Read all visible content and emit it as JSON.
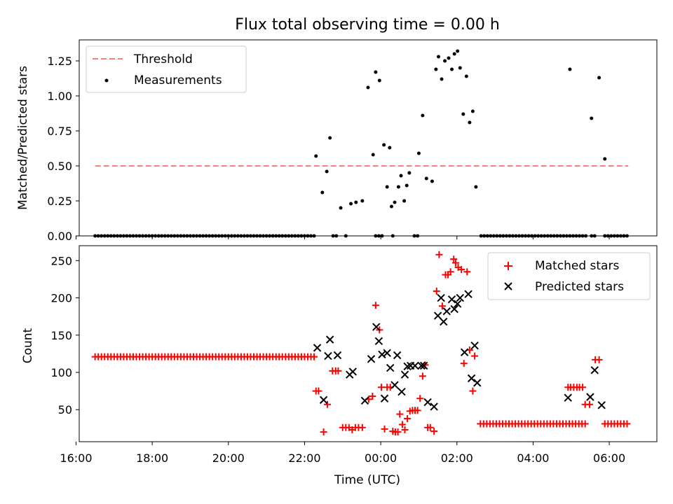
{
  "figure": {
    "title": "Flux total observing time = 0.00 h"
  },
  "chart_data": [
    {
      "type": "scatter",
      "ylabel": "Matched/Predicted stars",
      "xlabel": "",
      "xlim": [
        "16:05",
        "07:15"
      ],
      "ylim": [
        0,
        1.4
      ],
      "yticks": [
        0.0,
        0.25,
        0.5,
        0.75,
        1.0,
        1.25
      ],
      "ytick_labels": [
        "0.00",
        "0.25",
        "0.50",
        "0.75",
        "1.00",
        "1.25"
      ],
      "grid": false,
      "legend_position": "top-left",
      "threshold": {
        "name": "Threshold",
        "value": 0.5,
        "x_range": [
          "16:30",
          "06:30"
        ],
        "color": "#ff7f7f",
        "style": "dashed"
      },
      "series": [
        {
          "name": "Measurements",
          "color": "#000000",
          "marker": "dot",
          "points": [
            {
              "x": "22:18",
              "y": 0.57
            },
            {
              "x": "22:28",
              "y": 0.31
            },
            {
              "x": "22:35",
              "y": 0.46
            },
            {
              "x": "22:40",
              "y": 0.7
            },
            {
              "x": "22:57",
              "y": 0.2
            },
            {
              "x": "23:13",
              "y": 0.23
            },
            {
              "x": "23:21",
              "y": 0.24
            },
            {
              "x": "23:31",
              "y": 0.25
            },
            {
              "x": "23:40",
              "y": 1.06
            },
            {
              "x": "23:48",
              "y": 0.58
            },
            {
              "x": "23:52",
              "y": 1.17
            },
            {
              "x": "23:58",
              "y": 1.11
            },
            {
              "x": "00:05",
              "y": 0.65
            },
            {
              "x": "00:10",
              "y": 0.35
            },
            {
              "x": "00:14",
              "y": 0.63
            },
            {
              "x": "00:17",
              "y": 0.21
            },
            {
              "x": "00:22",
              "y": 0.24
            },
            {
              "x": "00:28",
              "y": 0.35
            },
            {
              "x": "00:32",
              "y": 0.43
            },
            {
              "x": "00:37",
              "y": 0.25
            },
            {
              "x": "00:41",
              "y": 0.36
            },
            {
              "x": "00:45",
              "y": 0.45
            },
            {
              "x": "01:00",
              "y": 0.59
            },
            {
              "x": "01:06",
              "y": 0.86
            },
            {
              "x": "01:12",
              "y": 0.41
            },
            {
              "x": "01:21",
              "y": 0.39
            },
            {
              "x": "01:27",
              "y": 1.19
            },
            {
              "x": "01:31",
              "y": 1.28
            },
            {
              "x": "01:36",
              "y": 1.12
            },
            {
              "x": "01:41",
              "y": 1.25
            },
            {
              "x": "01:47",
              "y": 1.27
            },
            {
              "x": "01:52",
              "y": 1.19
            },
            {
              "x": "01:56",
              "y": 1.3
            },
            {
              "x": "02:01",
              "y": 1.32
            },
            {
              "x": "02:05",
              "y": 1.2
            },
            {
              "x": "02:10",
              "y": 0.87
            },
            {
              "x": "02:15",
              "y": 1.14
            },
            {
              "x": "02:20",
              "y": 0.81
            },
            {
              "x": "02:25",
              "y": 0.89
            },
            {
              "x": "02:30",
              "y": 0.35
            },
            {
              "x": "04:58",
              "y": 1.19
            },
            {
              "x": "05:32",
              "y": 0.84
            },
            {
              "x": "05:44",
              "y": 1.13
            },
            {
              "x": "05:53",
              "y": 0.55
            }
          ],
          "zero_ranges": [
            [
              "16:30",
              "22:15"
            ],
            [
              "22:45",
              "22:52"
            ],
            [
              "23:05",
              "23:08"
            ],
            [
              "23:52",
              "00:02"
            ],
            [
              "00:19",
              "00:21"
            ],
            [
              "00:53",
              "01:00"
            ],
            [
              "02:38",
              "05:25"
            ],
            [
              "05:32",
              "05:40"
            ],
            [
              "05:53",
              "06:30"
            ]
          ]
        }
      ]
    },
    {
      "type": "scatter",
      "xlabel": "Time (UTC)",
      "ylabel": "Count",
      "xlim": [
        "16:05",
        "07:15"
      ],
      "ylim": [
        7,
        270
      ],
      "yticks": [
        50,
        100,
        150,
        200,
        250
      ],
      "xtick_labels": [
        "16:00",
        "18:00",
        "20:00",
        "22:00",
        "00:00",
        "02:00",
        "04:00",
        "06:00"
      ],
      "grid": false,
      "legend_position": "top-right",
      "series": [
        {
          "name": "Matched stars",
          "color": "#ff0000",
          "marker": "plus",
          "flat_runs": [
            {
              "from": "16:30",
              "to": "22:15",
              "y": 121
            },
            {
              "from": "02:37",
              "to": "05:22",
              "y": 31
            },
            {
              "from": "05:53",
              "to": "06:30",
              "y": 31
            }
          ],
          "points": [
            {
              "x": "22:18",
              "y": 75
            },
            {
              "x": "22:22",
              "y": 75
            },
            {
              "x": "22:30",
              "y": 20
            },
            {
              "x": "22:36",
              "y": 57
            },
            {
              "x": "22:44",
              "y": 102
            },
            {
              "x": "22:49",
              "y": 102
            },
            {
              "x": "22:53",
              "y": 102
            },
            {
              "x": "23:00",
              "y": 26
            },
            {
              "x": "23:05",
              "y": 26
            },
            {
              "x": "23:10",
              "y": 26
            },
            {
              "x": "23:15",
              "y": 23
            },
            {
              "x": "23:20",
              "y": 26
            },
            {
              "x": "23:25",
              "y": 26
            },
            {
              "x": "23:31",
              "y": 26
            },
            {
              "x": "23:41",
              "y": 64
            },
            {
              "x": "23:47",
              "y": 68
            },
            {
              "x": "23:52",
              "y": 190
            },
            {
              "x": "23:58",
              "y": 157
            },
            {
              "x": "00:01",
              "y": 80
            },
            {
              "x": "00:06",
              "y": 24
            },
            {
              "x": "00:10",
              "y": 80
            },
            {
              "x": "00:15",
              "y": 80
            },
            {
              "x": "00:19",
              "y": 21
            },
            {
              "x": "00:23",
              "y": 20
            },
            {
              "x": "00:27",
              "y": 20
            },
            {
              "x": "00:30",
              "y": 44
            },
            {
              "x": "00:34",
              "y": 30
            },
            {
              "x": "00:38",
              "y": 23
            },
            {
              "x": "00:42",
              "y": 38
            },
            {
              "x": "00:46",
              "y": 48
            },
            {
              "x": "00:50",
              "y": 49
            },
            {
              "x": "00:54",
              "y": 49
            },
            {
              "x": "00:58",
              "y": 49
            },
            {
              "x": "01:02",
              "y": 65
            },
            {
              "x": "01:06",
              "y": 95
            },
            {
              "x": "01:10",
              "y": 110
            },
            {
              "x": "01:14",
              "y": 26
            },
            {
              "x": "01:18",
              "y": 26
            },
            {
              "x": "01:24",
              "y": 21
            },
            {
              "x": "01:28",
              "y": 209
            },
            {
              "x": "01:32",
              "y": 258
            },
            {
              "x": "01:37",
              "y": 189
            },
            {
              "x": "01:42",
              "y": 231
            },
            {
              "x": "01:46",
              "y": 231
            },
            {
              "x": "01:50",
              "y": 235
            },
            {
              "x": "01:55",
              "y": 252
            },
            {
              "x": "01:58",
              "y": 247
            },
            {
              "x": "02:02",
              "y": 241
            },
            {
              "x": "02:07",
              "y": 238
            },
            {
              "x": "02:11",
              "y": 112
            },
            {
              "x": "02:16",
              "y": 235
            },
            {
              "x": "02:20",
              "y": 130
            },
            {
              "x": "02:25",
              "y": 75
            },
            {
              "x": "02:28",
              "y": 122
            },
            {
              "x": "04:55",
              "y": 80
            },
            {
              "x": "04:59",
              "y": 80
            },
            {
              "x": "05:04",
              "y": 80
            },
            {
              "x": "05:09",
              "y": 80
            },
            {
              "x": "05:13",
              "y": 80
            },
            {
              "x": "05:18",
              "y": 80
            },
            {
              "x": "05:22",
              "y": 57
            },
            {
              "x": "05:29",
              "y": 57
            },
            {
              "x": "05:38",
              "y": 117
            },
            {
              "x": "05:44",
              "y": 117
            }
          ]
        },
        {
          "name": "Predicted stars",
          "color": "#000000",
          "marker": "x",
          "points": [
            {
              "x": "22:20",
              "y": 133
            },
            {
              "x": "22:30",
              "y": 63
            },
            {
              "x": "22:37",
              "y": 122
            },
            {
              "x": "22:40",
              "y": 144
            },
            {
              "x": "22:52",
              "y": 123
            },
            {
              "x": "23:11",
              "y": 97
            },
            {
              "x": "23:16",
              "y": 101
            },
            {
              "x": "23:35",
              "y": 62
            },
            {
              "x": "23:45",
              "y": 118
            },
            {
              "x": "23:53",
              "y": 161
            },
            {
              "x": "23:57",
              "y": 142
            },
            {
              "x": "00:02",
              "y": 124
            },
            {
              "x": "00:06",
              "y": 65
            },
            {
              "x": "00:10",
              "y": 126
            },
            {
              "x": "00:15",
              "y": 106
            },
            {
              "x": "00:22",
              "y": 83
            },
            {
              "x": "00:26",
              "y": 123
            },
            {
              "x": "00:33",
              "y": 74
            },
            {
              "x": "00:38",
              "y": 97
            },
            {
              "x": "00:42",
              "y": 108
            },
            {
              "x": "00:47",
              "y": 109
            },
            {
              "x": "00:54",
              "y": 109
            },
            {
              "x": "01:04",
              "y": 109
            },
            {
              "x": "01:08",
              "y": 109
            },
            {
              "x": "01:14",
              "y": 60
            },
            {
              "x": "01:24",
              "y": 54
            },
            {
              "x": "01:30",
              "y": 176
            },
            {
              "x": "01:35",
              "y": 200
            },
            {
              "x": "01:39",
              "y": 168
            },
            {
              "x": "01:44",
              "y": 182
            },
            {
              "x": "01:52",
              "y": 198
            },
            {
              "x": "01:56",
              "y": 185
            },
            {
              "x": "02:01",
              "y": 192
            },
            {
              "x": "02:05",
              "y": 200
            },
            {
              "x": "02:12",
              "y": 127
            },
            {
              "x": "02:18",
              "y": 205
            },
            {
              "x": "02:23",
              "y": 92
            },
            {
              "x": "02:28",
              "y": 136
            },
            {
              "x": "02:32",
              "y": 86
            },
            {
              "x": "04:55",
              "y": 66
            },
            {
              "x": "05:30",
              "y": 67
            },
            {
              "x": "05:37",
              "y": 103
            },
            {
              "x": "05:48",
              "y": 56
            }
          ]
        }
      ]
    }
  ]
}
